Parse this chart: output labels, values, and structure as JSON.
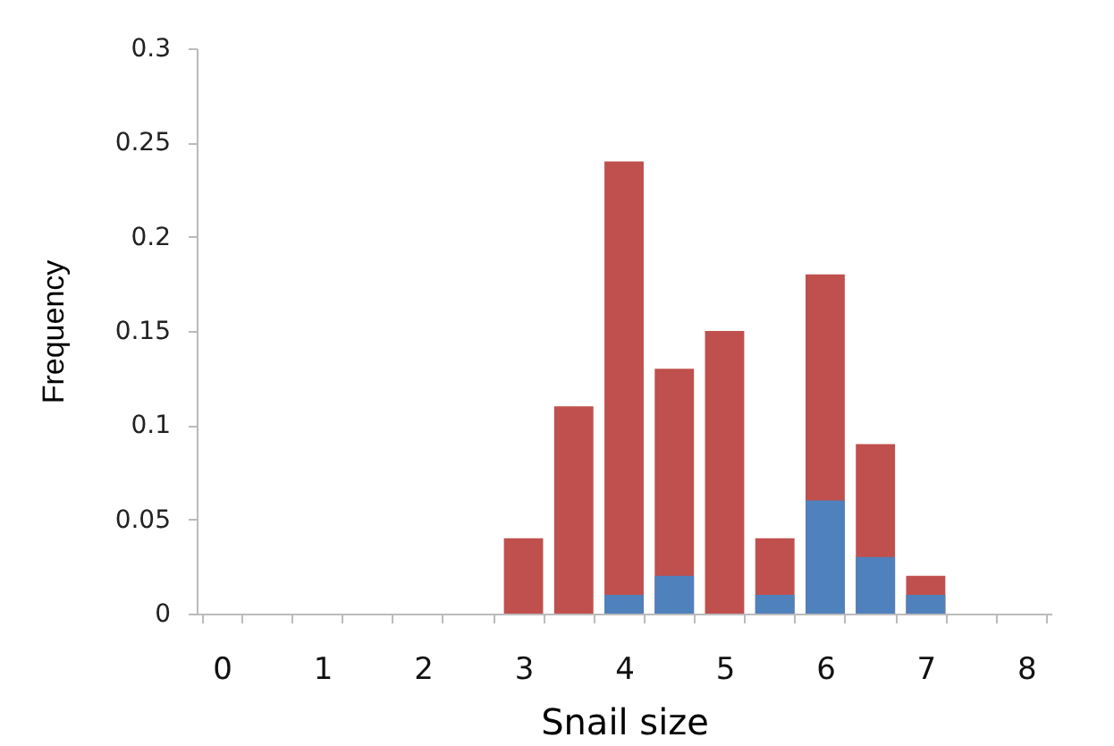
{
  "chart_data": {
    "type": "bar",
    "xlabel": "Snail size",
    "ylabel": "Frequency",
    "categories": [
      "0",
      null,
      "1",
      null,
      "2",
      null,
      "3",
      null,
      "4",
      null,
      "5",
      null,
      "6",
      null,
      "7",
      null,
      "8"
    ],
    "series": [
      {
        "color": "#c0504d",
        "values": [
          0,
          0,
          0,
          0,
          0,
          0,
          0.04,
          0.11,
          0.24,
          0.13,
          0.15,
          0.04,
          0.18,
          0.09,
          0.02,
          0,
          0
        ]
      },
      {
        "color": "#4f81bd",
        "values": [
          0,
          0,
          0,
          0,
          0,
          0,
          0,
          0,
          0.01,
          0.02,
          0,
          0.01,
          0.06,
          0.03,
          0.01,
          0,
          0
        ]
      }
    ],
    "ylim": [
      0,
      0.3
    ],
    "yticks": [
      0,
      0.05,
      0.1,
      0.15,
      0.2,
      0.25,
      0.3
    ],
    "grid": false
  }
}
